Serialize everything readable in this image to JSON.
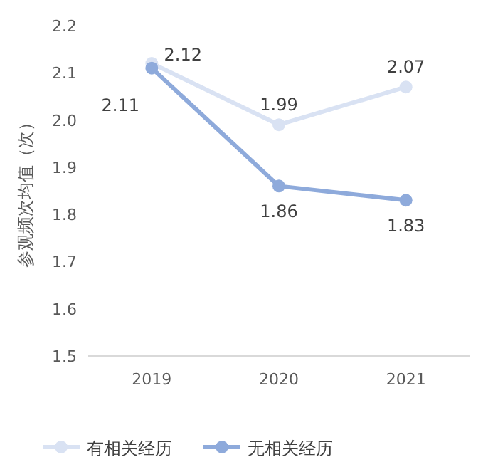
{
  "chart_data": {
    "type": "line",
    "ylabel": "参观频次均值（次）",
    "categories": [
      "2019",
      "2020",
      "2021"
    ],
    "series": [
      {
        "name": "有相关经历",
        "color": "#d9e2f3",
        "values": [
          2.12,
          1.99,
          2.07
        ]
      },
      {
        "name": "无相关经历",
        "color": "#8eaadb",
        "values": [
          2.11,
          1.86,
          1.83
        ]
      }
    ],
    "ylim": [
      1.5,
      2.2
    ],
    "yticks": [
      1.5,
      1.6,
      1.7,
      1.8,
      1.9,
      {
        "value": 2.0,
        "label": "2.0"
      },
      2.1,
      2.2
    ],
    "data_labels": true,
    "marker": "circle",
    "legend": "bottom",
    "grid": false
  }
}
